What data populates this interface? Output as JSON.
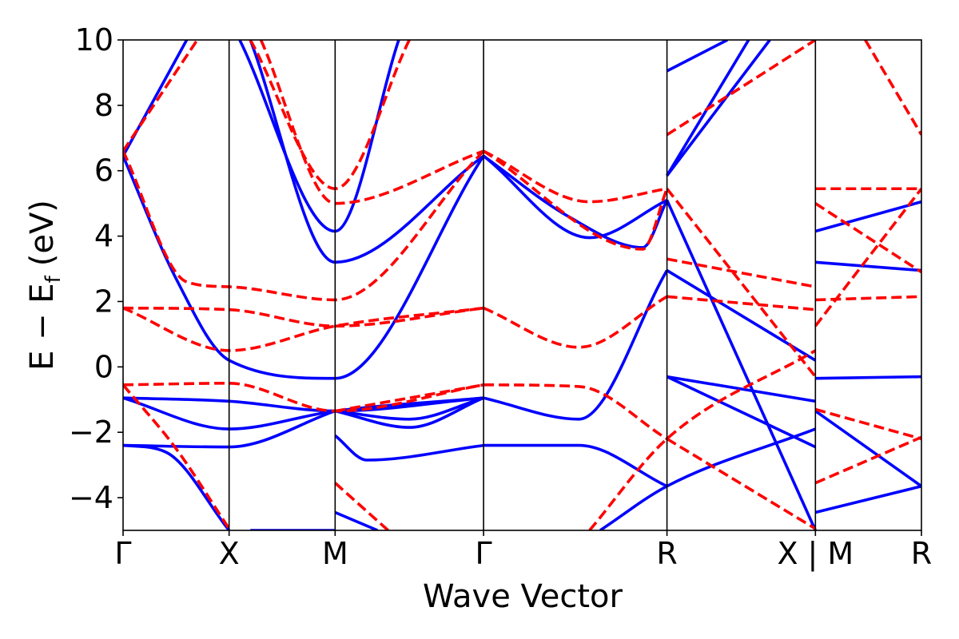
{
  "chart_data": {
    "type": "line",
    "title": "",
    "xlabel": "Wave Vector",
    "ylabel_main": "E − E",
    "ylabel_sub": "f",
    "ylabel_unit": "(eV)",
    "ylim": [
      -5,
      10
    ],
    "yticks": [
      -4,
      -2,
      0,
      2,
      4,
      6,
      8,
      10
    ],
    "ytick_labels": [
      "−4",
      "−2",
      "0",
      "2",
      "4",
      "6",
      "8",
      "10"
    ],
    "kpoint_positions": [
      0,
      1,
      2,
      3.4,
      5.13,
      6.53,
      7.53
    ],
    "kpoint_labels": [
      "Γ",
      "X",
      "M",
      "Γ",
      "R",
      "X | M",
      "R"
    ],
    "xlim": [
      0,
      7.53
    ],
    "grid": false,
    "colors": {
      "series_a": "#0000ff",
      "series_b": "#ff0000"
    },
    "series": [
      {
        "style": "solid",
        "color": "#0000ff",
        "bands": [
          [
            [
              0,
              6.45
            ],
            [
              0.5,
              2.7
            ],
            [
              1,
              0.2
            ],
            [
              2,
              -0.35
            ],
            [
              3.4,
              6.45
            ]
          ],
          [
            [
              0,
              -0.95
            ],
            [
              1,
              -1.9
            ],
            [
              2,
              -1.35
            ],
            [
              3.4,
              -0.95
            ]
          ],
          [
            [
              0,
              -0.95
            ],
            [
              1,
              -1.05
            ],
            [
              2,
              -1.35
            ],
            [
              3.4,
              -0.95
            ]
          ],
          [
            [
              0,
              -2.4
            ],
            [
              1,
              -2.45
            ],
            [
              2,
              -1.35
            ]
          ],
          [
            [
              0,
              -2.4
            ],
            [
              0.4,
              -2.6
            ],
            [
              1,
              -5.0
            ]
          ],
          [
            [
              0,
              6.45
            ],
            [
              0.6,
              10.0
            ]
          ],
          [
            [
              1.1,
              10.0
            ],
            [
              2,
              4.15
            ],
            [
              2.6,
              10.0
            ]
          ],
          [
            [
              1.2,
              10.0
            ],
            [
              2,
              3.2
            ],
            [
              3.4,
              6.45
            ]
          ],
          [
            [
              2,
              -1.35
            ],
            [
              2.7,
              -1.85
            ],
            [
              3.4,
              -0.95
            ]
          ],
          [
            [
              2,
              -1.35
            ],
            [
              2.7,
              -1.6
            ],
            [
              3.4,
              -0.95
            ]
          ],
          [
            [
              2,
              -2.1
            ],
            [
              2.3,
              -2.85
            ],
            [
              3.4,
              -2.4
            ]
          ],
          [
            [
              2,
              -4.45
            ],
            [
              2.4,
              -5.0
            ]
          ],
          [
            [
              1.2,
              -5.0
            ],
            [
              2,
              -5.0
            ]
          ],
          [
            [
              3.4,
              6.45
            ],
            [
              4.4,
              3.95
            ],
            [
              5.13,
              5.1
            ]
          ],
          [
            [
              3.4,
              6.45
            ],
            [
              4.2,
              4.6
            ],
            [
              4.9,
              3.65
            ],
            [
              5.13,
              5.1
            ]
          ],
          [
            [
              3.4,
              -0.95
            ],
            [
              4.3,
              -1.6
            ],
            [
              5.13,
              2.95
            ]
          ],
          [
            [
              3.4,
              -2.4
            ],
            [
              4.3,
              -2.4
            ],
            [
              5.13,
              -3.65
            ]
          ],
          [
            [
              4.5,
              -5.0
            ],
            [
              5.13,
              -3.65
            ],
            [
              6.53,
              -1.9
            ]
          ],
          [
            [
              5.13,
              -0.3
            ],
            [
              6.53,
              -1.05
            ]
          ],
          [
            [
              5.13,
              -0.3
            ],
            [
              6.53,
              -2.45
            ]
          ],
          [
            [
              5.13,
              2.95
            ],
            [
              6.53,
              0.2
            ]
          ],
          [
            [
              5.13,
              5.1
            ],
            [
              6.53,
              -5.0
            ]
          ],
          [
            [
              5.13,
              5.85
            ],
            [
              6.1,
              10.0
            ]
          ],
          [
            [
              5.13,
              5.85
            ],
            [
              5.9,
              10.0
            ]
          ],
          [
            [
              5.13,
              9.05
            ],
            [
              5.7,
              10.0
            ]
          ],
          [
            [
              6.53,
              4.15
            ],
            [
              7.53,
              5.05
            ]
          ],
          [
            [
              6.53,
              3.2
            ],
            [
              7.53,
              2.95
            ]
          ],
          [
            [
              6.53,
              -0.35
            ],
            [
              7.53,
              -0.3
            ]
          ],
          [
            [
              6.53,
              -1.35
            ],
            [
              7.53,
              -3.65
            ]
          ],
          [
            [
              6.53,
              -4.45
            ],
            [
              7.53,
              -3.65
            ]
          ]
        ]
      },
      {
        "style": "dashed",
        "color": "#ff0000",
        "bands": [
          [
            [
              0,
              6.6
            ],
            [
              0.7,
              10.0
            ]
          ],
          [
            [
              0,
              6.6
            ],
            [
              0.6,
              2.6
            ],
            [
              1,
              2.45
            ],
            [
              2,
              2.05
            ],
            [
              3.4,
              6.6
            ]
          ],
          [
            [
              0,
              1.8
            ],
            [
              1,
              1.75
            ],
            [
              2,
              1.25
            ],
            [
              3.4,
              1.8
            ]
          ],
          [
            [
              0,
              1.8
            ],
            [
              1,
              0.5
            ],
            [
              2,
              1.25
            ],
            [
              3.4,
              1.8
            ]
          ],
          [
            [
              0,
              -0.55
            ],
            [
              1,
              -0.5
            ],
            [
              2,
              -1.35
            ],
            [
              3.4,
              -0.55
            ]
          ],
          [
            [
              0,
              -0.55
            ],
            [
              0.5,
              -2.5
            ],
            [
              1,
              -4.95
            ]
          ],
          [
            [
              1.3,
              10.0
            ],
            [
              2,
              5.0
            ],
            [
              3.4,
              6.6
            ]
          ],
          [
            [
              1.2,
              10.0
            ],
            [
              2,
              5.45
            ],
            [
              2.7,
              10.0
            ]
          ],
          [
            [
              2,
              -1.35
            ],
            [
              3.4,
              -0.55
            ]
          ],
          [
            [
              2,
              -3.55
            ],
            [
              2.5,
              -5.0
            ]
          ],
          [
            [
              3.4,
              6.6
            ],
            [
              4.4,
              5.05
            ],
            [
              5.13,
              5.45
            ]
          ],
          [
            [
              3.4,
              6.6
            ],
            [
              4.9,
              3.6
            ],
            [
              5.13,
              5.45
            ]
          ],
          [
            [
              3.4,
              1.8
            ],
            [
              4.3,
              0.6
            ],
            [
              5.13,
              2.15
            ]
          ],
          [
            [
              3.4,
              -0.55
            ],
            [
              4.3,
              -0.6
            ],
            [
              5.13,
              -2.2
            ]
          ],
          [
            [
              4.4,
              -5.0
            ],
            [
              5.13,
              -2.2
            ],
            [
              6.53,
              0.5
            ]
          ],
          [
            [
              5.13,
              -2.2
            ],
            [
              6.53,
              -4.95
            ]
          ],
          [
            [
              5.13,
              7.1
            ],
            [
              6.53,
              10.0
            ]
          ],
          [
            [
              5.13,
              2.15
            ],
            [
              6.53,
              1.75
            ]
          ],
          [
            [
              5.13,
              3.3
            ],
            [
              6.53,
              2.45
            ]
          ],
          [
            [
              5.13,
              5.45
            ],
            [
              6.53,
              -0.3
            ]
          ],
          [
            [
              6.53,
              5.45
            ],
            [
              7.53,
              5.45
            ]
          ],
          [
            [
              6.53,
              5.0
            ],
            [
              7.53,
              2.9
            ]
          ],
          [
            [
              6.53,
              2.05
            ],
            [
              7.53,
              2.15
            ]
          ],
          [
            [
              6.53,
              -1.3
            ],
            [
              7.53,
              -2.2
            ]
          ],
          [
            [
              6.53,
              -3.55
            ],
            [
              7.53,
              -2.15
            ]
          ],
          [
            [
              6.53,
              1.25
            ],
            [
              7.53,
              5.45
            ]
          ],
          [
            [
              7.0,
              10.0
            ],
            [
              7.53,
              7.1
            ]
          ]
        ]
      }
    ]
  }
}
